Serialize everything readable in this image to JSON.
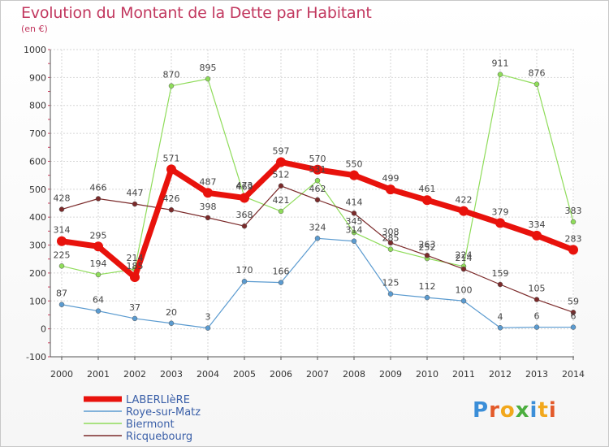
{
  "title": "Evolution du Montant de la Dette par Habitant",
  "subtitle": "(en €)",
  "logo": "Proxiti",
  "chart_data": {
    "type": "line",
    "x": [
      "2000",
      "2001",
      "2002",
      "2003",
      "2004",
      "2005",
      "2006",
      "2007",
      "2008",
      "2009",
      "2010",
      "2011",
      "2012",
      "2013",
      "2014"
    ],
    "ylim": [
      -100,
      1000
    ],
    "yticks": [
      -100,
      0,
      100,
      200,
      300,
      400,
      500,
      600,
      700,
      800,
      900,
      1000
    ],
    "grid": true,
    "legend": "bottom-left",
    "series": [
      {
        "name": "LABERLIèRE",
        "color": "#e8120c",
        "width": 7,
        "values": [
          314,
          295,
          185,
          571,
          487,
          469,
          597,
          570,
          550,
          499,
          461,
          422,
          379,
          334,
          283
        ]
      },
      {
        "name": "Roye-sur-Matz",
        "color": "#5b9bd0",
        "width": 1.2,
        "values": [
          87,
          64,
          37,
          20,
          3,
          170,
          166,
          324,
          314,
          125,
          112,
          100,
          4,
          6,
          6
        ]
      },
      {
        "name": "Biermont",
        "color": "#8fdc5a",
        "width": 1.2,
        "values": [
          225,
          194,
          214,
          870,
          895,
          473,
          421,
          531,
          345,
          285,
          252,
          224,
          911,
          876,
          383
        ]
      },
      {
        "name": "Ricquebourg",
        "color": "#7b2a2a",
        "width": 1.2,
        "values": [
          428,
          466,
          447,
          426,
          398,
          368,
          512,
          462,
          414,
          308,
          263,
          214,
          159,
          105,
          59
        ]
      }
    ]
  }
}
